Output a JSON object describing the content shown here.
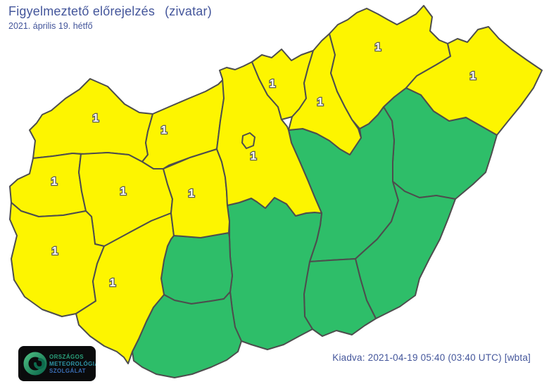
{
  "header": {
    "title": "Figyelmeztető előrejelzés",
    "title_suffix": "(zivatar)",
    "date": "2021. április 19. hétfő"
  },
  "footer": {
    "issued": "Kiadva: 2021-04-19 05:40 (03:40 UTC) [wbta]"
  },
  "logo": {
    "lines": [
      "ORSZÁGOS",
      "METEOROLÓGIAI",
      "SZOLGÁLAT"
    ]
  },
  "colors": {
    "warning_level_1": "#FDF500",
    "no_warning": "#2EBE69",
    "border": "#4D4D4D",
    "accent_text": "#44569B",
    "label_fill": "#FFFFFF",
    "label_outline": "#5A5A5A"
  },
  "map": {
    "warning_type": "zivatar",
    "counties": [
      {
        "id": "hajdu-bihar",
        "warning_level": 0,
        "label": ""
      },
      {
        "id": "jasz-nagykun-szolnok",
        "warning_level": 0,
        "label": ""
      },
      {
        "id": "bekes",
        "warning_level": 0,
        "label": ""
      },
      {
        "id": "csongrad-csanad",
        "warning_level": 0,
        "label": ""
      },
      {
        "id": "bacs-kiskun",
        "warning_level": 0,
        "label": ""
      },
      {
        "id": "tolna",
        "warning_level": 0,
        "label": ""
      },
      {
        "id": "baranya",
        "warning_level": 0,
        "label": ""
      },
      {
        "id": "gyor-moson-sopron",
        "warning_level": 1,
        "label": "1"
      },
      {
        "id": "komarom-esztergom",
        "warning_level": 1,
        "label": "1"
      },
      {
        "id": "vas",
        "warning_level": 1,
        "label": "1"
      },
      {
        "id": "veszprem",
        "warning_level": 1,
        "label": "1"
      },
      {
        "id": "zala",
        "warning_level": 1,
        "label": "1"
      },
      {
        "id": "somogy",
        "warning_level": 1,
        "label": "1"
      },
      {
        "id": "fejer",
        "warning_level": 1,
        "label": "1"
      },
      {
        "id": "pest",
        "warning_level": 1,
        "label": "1"
      },
      {
        "id": "nograd",
        "warning_level": 1,
        "label": "1"
      },
      {
        "id": "heves",
        "warning_level": 1,
        "label": "1"
      },
      {
        "id": "borsod-abauj-zemplen",
        "warning_level": 1,
        "label": "1"
      },
      {
        "id": "szabolcs-szatmar-bereg",
        "warning_level": 1,
        "label": "1"
      },
      {
        "id": "budapest",
        "warning_level": 1,
        "label": ""
      }
    ]
  }
}
